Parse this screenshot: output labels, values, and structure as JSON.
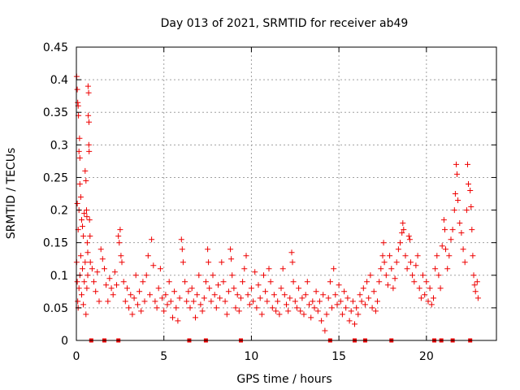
{
  "chart_data": {
    "type": "scatter",
    "title": "Day 013 of 2021, SRMTID for receiver ab49",
    "xlabel": "GPS time / hours",
    "ylabel": "SRMTID / TECUs",
    "xlim": [
      0,
      24
    ],
    "ylim": [
      0,
      0.45
    ],
    "xticks": [
      0,
      5,
      10,
      15,
      20
    ],
    "xtick_labels": [
      "0",
      "5",
      "10",
      "15",
      "20"
    ],
    "yticks": [
      0,
      0.05,
      0.1,
      0.15,
      0.2,
      0.25,
      0.3,
      0.35,
      0.4,
      0.45
    ],
    "ytick_labels": [
      "0",
      "0.05",
      "0.1",
      "0.15",
      "0.2",
      "0.25",
      "0.3",
      "0.35",
      "0.4",
      "0.45"
    ],
    "grid": true,
    "marker": "+",
    "series_color": "#ee0000",
    "baseline_markers_x": [
      0.85,
      1.6,
      2.4,
      6.45,
      7.4,
      9.4,
      14.5,
      15.9,
      16.5,
      18.0,
      20.45,
      20.85,
      21.5,
      22.5
    ],
    "series": [
      {
        "name": "SRMTID",
        "points": [
          [
            0.02,
            0.405
          ],
          [
            0.05,
            0.385
          ],
          [
            0.08,
            0.365
          ],
          [
            0.1,
            0.36
          ],
          [
            0.12,
            0.345
          ],
          [
            0.15,
            0.29
          ],
          [
            0.18,
            0.31
          ],
          [
            0.2,
            0.28
          ],
          [
            0.05,
            0.21
          ],
          [
            0.1,
            0.17
          ],
          [
            0.15,
            0.2
          ],
          [
            0.2,
            0.24
          ],
          [
            0.25,
            0.22
          ],
          [
            0.3,
            0.185
          ],
          [
            0.35,
            0.175
          ],
          [
            0.4,
            0.16
          ],
          [
            0.45,
            0.195
          ],
          [
            0.5,
            0.26
          ],
          [
            0.55,
            0.245
          ],
          [
            0.58,
            0.2
          ],
          [
            0.6,
            0.19
          ],
          [
            0.62,
            0.15
          ],
          [
            0.65,
            0.135
          ],
          [
            0.67,
            0.39
          ],
          [
            0.7,
            0.38
          ],
          [
            0.68,
            0.345
          ],
          [
            0.72,
            0.335
          ],
          [
            0.71,
            0.3
          ],
          [
            0.73,
            0.29
          ],
          [
            0.75,
            0.185
          ],
          [
            0.78,
            0.16
          ],
          [
            0.8,
            0.12
          ],
          [
            0.02,
            0.12
          ],
          [
            0.05,
            0.09
          ],
          [
            0.08,
            0.06
          ],
          [
            0.1,
            0.05
          ],
          [
            0.15,
            0.08
          ],
          [
            0.2,
            0.1
          ],
          [
            0.25,
            0.13
          ],
          [
            0.3,
            0.07
          ],
          [
            0.35,
            0.11
          ],
          [
            0.4,
            0.055
          ],
          [
            0.45,
            0.09
          ],
          [
            0.5,
            0.12
          ],
          [
            0.55,
            0.04
          ],
          [
            0.6,
            0.08
          ],
          [
            0.65,
            0.1
          ],
          [
            0.9,
            0.11
          ],
          [
            1.0,
            0.09
          ],
          [
            1.1,
            0.075
          ],
          [
            1.2,
            0.105
          ],
          [
            1.3,
            0.06
          ],
          [
            1.4,
            0.14
          ],
          [
            1.5,
            0.125
          ],
          [
            1.6,
            0.11
          ],
          [
            1.7,
            0.085
          ],
          [
            1.8,
            0.06
          ],
          [
            1.9,
            0.095
          ],
          [
            2.0,
            0.08
          ],
          [
            2.1,
            0.07
          ],
          [
            2.2,
            0.105
          ],
          [
            2.3,
            0.085
          ],
          [
            2.4,
            0.16
          ],
          [
            2.45,
            0.15
          ],
          [
            2.5,
            0.17
          ],
          [
            2.55,
            0.13
          ],
          [
            2.6,
            0.12
          ],
          [
            2.7,
            0.09
          ],
          [
            2.8,
            0.06
          ],
          [
            2.9,
            0.08
          ],
          [
            3.0,
            0.05
          ],
          [
            3.1,
            0.07
          ],
          [
            3.2,
            0.04
          ],
          [
            3.3,
            0.065
          ],
          [
            3.4,
            0.1
          ],
          [
            3.5,
            0.055
          ],
          [
            3.6,
            0.075
          ],
          [
            3.7,
            0.045
          ],
          [
            3.8,
            0.09
          ],
          [
            3.9,
            0.06
          ],
          [
            4.0,
            0.1
          ],
          [
            4.1,
            0.13
          ],
          [
            4.2,
            0.07
          ],
          [
            4.3,
            0.155
          ],
          [
            4.4,
            0.115
          ],
          [
            4.5,
            0.06
          ],
          [
            4.6,
            0.05
          ],
          [
            4.7,
            0.08
          ],
          [
            4.8,
            0.11
          ],
          [
            4.9,
            0.065
          ],
          [
            5.0,
            0.045
          ],
          [
            5.1,
            0.07
          ],
          [
            5.2,
            0.055
          ],
          [
            5.3,
            0.09
          ],
          [
            5.4,
            0.06
          ],
          [
            5.5,
            0.035
          ],
          [
            5.6,
            0.075
          ],
          [
            5.7,
            0.05
          ],
          [
            5.8,
            0.03
          ],
          [
            5.9,
            0.065
          ],
          [
            6.0,
            0.155
          ],
          [
            6.05,
            0.14
          ],
          [
            6.1,
            0.12
          ],
          [
            6.2,
            0.09
          ],
          [
            6.3,
            0.06
          ],
          [
            6.4,
            0.075
          ],
          [
            6.5,
            0.05
          ],
          [
            6.6,
            0.08
          ],
          [
            6.7,
            0.06
          ],
          [
            6.8,
            0.035
          ],
          [
            6.9,
            0.07
          ],
          [
            7.0,
            0.1
          ],
          [
            7.1,
            0.055
          ],
          [
            7.2,
            0.045
          ],
          [
            7.3,
            0.065
          ],
          [
            7.4,
            0.09
          ],
          [
            7.5,
            0.14
          ],
          [
            7.55,
            0.12
          ],
          [
            7.6,
            0.08
          ],
          [
            7.7,
            0.06
          ],
          [
            7.8,
            0.1
          ],
          [
            7.9,
            0.07
          ],
          [
            8.0,
            0.05
          ],
          [
            8.1,
            0.085
          ],
          [
            8.2,
            0.065
          ],
          [
            8.3,
            0.12
          ],
          [
            8.4,
            0.09
          ],
          [
            8.5,
            0.06
          ],
          [
            8.6,
            0.04
          ],
          [
            8.7,
            0.075
          ],
          [
            8.8,
            0.14
          ],
          [
            8.85,
            0.125
          ],
          [
            8.9,
            0.1
          ],
          [
            9.0,
            0.08
          ],
          [
            9.1,
            0.05
          ],
          [
            9.2,
            0.07
          ],
          [
            9.3,
            0.045
          ],
          [
            9.4,
            0.065
          ],
          [
            9.5,
            0.09
          ],
          [
            9.6,
            0.11
          ],
          [
            9.7,
            0.13
          ],
          [
            9.8,
            0.07
          ],
          [
            9.9,
            0.055
          ],
          [
            10.0,
            0.08
          ],
          [
            10.1,
            0.06
          ],
          [
            10.2,
            0.105
          ],
          [
            10.3,
            0.05
          ],
          [
            10.4,
            0.085
          ],
          [
            10.5,
            0.065
          ],
          [
            10.6,
            0.04
          ],
          [
            10.7,
            0.1
          ],
          [
            10.8,
            0.075
          ],
          [
            10.9,
            0.06
          ],
          [
            11.0,
            0.11
          ],
          [
            11.1,
            0.09
          ],
          [
            11.2,
            0.05
          ],
          [
            11.3,
            0.07
          ],
          [
            11.4,
            0.045
          ],
          [
            11.5,
            0.06
          ],
          [
            11.6,
            0.04
          ],
          [
            11.7,
            0.08
          ],
          [
            11.8,
            0.11
          ],
          [
            11.9,
            0.07
          ],
          [
            12.0,
            0.055
          ],
          [
            12.1,
            0.045
          ],
          [
            12.2,
            0.065
          ],
          [
            12.3,
            0.135
          ],
          [
            12.35,
            0.12
          ],
          [
            12.4,
            0.09
          ],
          [
            12.5,
            0.06
          ],
          [
            12.6,
            0.05
          ],
          [
            12.7,
            0.08
          ],
          [
            12.8,
            0.045
          ],
          [
            12.9,
            0.065
          ],
          [
            13.0,
            0.04
          ],
          [
            13.1,
            0.07
          ],
          [
            13.2,
            0.09
          ],
          [
            13.3,
            0.055
          ],
          [
            13.4,
            0.035
          ],
          [
            13.5,
            0.06
          ],
          [
            13.6,
            0.05
          ],
          [
            13.7,
            0.075
          ],
          [
            13.8,
            0.045
          ],
          [
            13.9,
            0.06
          ],
          [
            14.0,
            0.03
          ],
          [
            14.1,
            0.07
          ],
          [
            14.2,
            0.015
          ],
          [
            14.3,
            0.04
          ],
          [
            14.4,
            0.065
          ],
          [
            14.5,
            0.09
          ],
          [
            14.6,
            0.05
          ],
          [
            14.7,
            0.11
          ],
          [
            14.8,
            0.07
          ],
          [
            14.9,
            0.055
          ],
          [
            15.0,
            0.085
          ],
          [
            15.1,
            0.06
          ],
          [
            15.2,
            0.04
          ],
          [
            15.3,
            0.075
          ],
          [
            15.4,
            0.05
          ],
          [
            15.5,
            0.065
          ],
          [
            15.6,
            0.03
          ],
          [
            15.7,
            0.045
          ],
          [
            15.8,
            0.06
          ],
          [
            15.9,
            0.025
          ],
          [
            16.0,
            0.05
          ],
          [
            16.1,
            0.04
          ],
          [
            16.2,
            0.07
          ],
          [
            16.3,
            0.06
          ],
          [
            16.4,
            0.08
          ],
          [
            16.5,
            0.055
          ],
          [
            16.6,
            0.09
          ],
          [
            16.7,
            0.065
          ],
          [
            16.8,
            0.1
          ],
          [
            16.9,
            0.05
          ],
          [
            17.0,
            0.075
          ],
          [
            17.1,
            0.045
          ],
          [
            17.2,
            0.06
          ],
          [
            17.3,
            0.09
          ],
          [
            17.4,
            0.11
          ],
          [
            17.5,
            0.13
          ],
          [
            17.55,
            0.15
          ],
          [
            17.6,
            0.12
          ],
          [
            17.7,
            0.1
          ],
          [
            17.8,
            0.085
          ],
          [
            17.9,
            0.13
          ],
          [
            18.0,
            0.11
          ],
          [
            18.1,
            0.08
          ],
          [
            18.2,
            0.095
          ],
          [
            18.3,
            0.12
          ],
          [
            18.4,
            0.14
          ],
          [
            18.5,
            0.15
          ],
          [
            18.6,
            0.165
          ],
          [
            18.65,
            0.18
          ],
          [
            18.7,
            0.17
          ],
          [
            18.8,
            0.13
          ],
          [
            18.9,
            0.11
          ],
          [
            19.0,
            0.16
          ],
          [
            19.05,
            0.155
          ],
          [
            19.1,
            0.12
          ],
          [
            19.2,
            0.1
          ],
          [
            19.3,
            0.09
          ],
          [
            19.4,
            0.115
          ],
          [
            19.5,
            0.13
          ],
          [
            19.6,
            0.08
          ],
          [
            19.7,
            0.065
          ],
          [
            19.8,
            0.1
          ],
          [
            19.9,
            0.07
          ],
          [
            20.0,
            0.09
          ],
          [
            20.1,
            0.06
          ],
          [
            20.2,
            0.08
          ],
          [
            20.3,
            0.055
          ],
          [
            20.4,
            0.065
          ],
          [
            20.5,
            0.11
          ],
          [
            20.6,
            0.13
          ],
          [
            20.7,
            0.1
          ],
          [
            20.8,
            0.08
          ],
          [
            20.9,
            0.145
          ],
          [
            21.0,
            0.185
          ],
          [
            21.05,
            0.17
          ],
          [
            21.1,
            0.14
          ],
          [
            21.2,
            0.11
          ],
          [
            21.3,
            0.13
          ],
          [
            21.4,
            0.155
          ],
          [
            21.5,
            0.17
          ],
          [
            21.6,
            0.2
          ],
          [
            21.65,
            0.225
          ],
          [
            21.7,
            0.27
          ],
          [
            21.75,
            0.255
          ],
          [
            21.8,
            0.215
          ],
          [
            21.9,
            0.18
          ],
          [
            22.0,
            0.165
          ],
          [
            22.1,
            0.14
          ],
          [
            22.2,
            0.12
          ],
          [
            22.3,
            0.2
          ],
          [
            22.35,
            0.27
          ],
          [
            22.4,
            0.24
          ],
          [
            22.5,
            0.23
          ],
          [
            22.55,
            0.205
          ],
          [
            22.6,
            0.17
          ],
          [
            22.65,
            0.13
          ],
          [
            22.7,
            0.1
          ],
          [
            22.75,
            0.085
          ],
          [
            22.8,
            0.075
          ],
          [
            22.9,
            0.09
          ],
          [
            22.95,
            0.065
          ]
        ]
      }
    ]
  }
}
